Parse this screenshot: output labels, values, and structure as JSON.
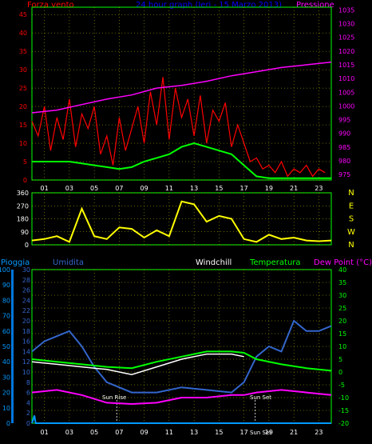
{
  "header": {
    "left_label": "Forza vento",
    "center_title": "24 hour graph (Ieri - 15 Marzo 2013)",
    "right_label": "Pressione"
  },
  "hours": [
    "01",
    "03",
    "05",
    "07",
    "09",
    "11",
    "13",
    "15",
    "17",
    "19",
    "21",
    "23"
  ],
  "colors": {
    "wind": "#ff0000",
    "avg_wind": "#00ff00",
    "pressure": "#ff00ff",
    "direction": "#ffff00",
    "pioggia": "#0099ff",
    "umidita": "#3366cc",
    "windchill": "#ffffff",
    "temperatura": "#00ff00",
    "dewpoint": "#ff00ff",
    "grid": "#c8c800"
  },
  "chart_data": [
    {
      "id": "wind",
      "type": "line",
      "left_label": "Forza vento",
      "right_label": "Pressione",
      "left_ticks": [
        "0",
        "5",
        "10",
        "15",
        "20",
        "25",
        "30",
        "35",
        "40",
        "45"
      ],
      "right_ticks": [
        "975",
        "980",
        "985",
        "990",
        "995",
        "1000",
        "1005",
        "1010",
        "1015",
        "1020",
        "1025",
        "1030",
        "1035"
      ],
      "ylim_left": [
        0,
        47
      ],
      "ylim_right": [
        973,
        1036
      ],
      "x_hour_range": [
        0,
        24
      ],
      "pressure": {
        "x": [
          0,
          2,
          4,
          6,
          8,
          10,
          12,
          14,
          16,
          18,
          20,
          22,
          24
        ],
        "y": [
          997.5,
          998.5,
          1000.5,
          1002.5,
          1004,
          1006.5,
          1007.5,
          1009,
          1011,
          1012.5,
          1014,
          1015,
          1016
        ]
      },
      "wind_gust": {
        "x": [
          0,
          0.5,
          1,
          1.5,
          2,
          2.5,
          3,
          3.5,
          4,
          4.5,
          5,
          5.5,
          6,
          6.5,
          7,
          7.5,
          8,
          8.5,
          9,
          9.5,
          10,
          10.5,
          11,
          11.5,
          12,
          12.5,
          13,
          13.5,
          14,
          14.5,
          15,
          15.5,
          16,
          16.5,
          17,
          17.5,
          18,
          18.5,
          19,
          19.5,
          20,
          20.5,
          21,
          21.5,
          22,
          22.5,
          23,
          23.5
        ],
        "y": [
          16,
          12,
          20,
          8,
          17,
          11,
          22,
          9,
          18,
          14,
          20,
          7,
          12,
          4,
          17,
          8,
          14,
          20,
          10,
          24,
          15,
          28,
          11,
          25,
          17,
          22,
          12,
          23,
          10,
          19,
          16,
          21,
          9,
          15,
          10,
          5,
          6,
          3,
          4,
          2,
          5,
          1,
          3,
          2,
          4,
          1,
          3,
          2
        ]
      },
      "wind_avg": {
        "x": [
          0,
          1,
          2,
          3,
          4,
          5,
          6,
          7,
          8,
          9,
          10,
          11,
          12,
          13,
          14,
          15,
          16,
          17,
          18,
          19,
          20,
          21,
          22,
          23,
          24
        ],
        "y": [
          5,
          5,
          5,
          5,
          4.5,
          4,
          3.5,
          3,
          3.5,
          5,
          6,
          7,
          9,
          10,
          9,
          8,
          7,
          4,
          1,
          0.5,
          0.5,
          0.5,
          0.5,
          0.5,
          0.5
        ]
      }
    },
    {
      "id": "direction",
      "type": "line",
      "left_ticks": [
        "0",
        "90",
        "180",
        "270",
        "360"
      ],
      "right_ticks": [
        "N",
        "W",
        "S",
        "E",
        "N"
      ],
      "ylim": [
        0,
        360
      ],
      "direction": {
        "x": [
          0,
          1,
          2,
          3,
          4,
          5,
          6,
          7,
          8,
          9,
          10,
          11,
          12,
          13,
          14,
          15,
          16,
          17,
          18,
          19,
          20,
          21,
          22,
          23,
          24
        ],
        "y": [
          30,
          40,
          60,
          20,
          250,
          60,
          40,
          120,
          110,
          50,
          100,
          60,
          300,
          280,
          160,
          200,
          180,
          40,
          20,
          70,
          40,
          50,
          30,
          25,
          30
        ]
      }
    },
    {
      "id": "thermo",
      "type": "line",
      "legend": [
        "Pioggia",
        "Umidita",
        "Windchill",
        "Temperatura",
        "Dew Point (°C)"
      ],
      "left_ticks_rain": [
        "0",
        "10",
        "20",
        "30",
        "40",
        "50",
        "60",
        "70",
        "80",
        "90",
        "100"
      ],
      "left_ticks_hum": [
        "0",
        "2",
        "4",
        "6",
        "8",
        "10",
        "12",
        "14",
        "16",
        "18",
        "20",
        "22",
        "24",
        "26",
        "28",
        "30"
      ],
      "right_ticks": [
        "-20",
        "-15",
        "-10",
        "-5",
        "0",
        "5",
        "10",
        "15",
        "20",
        "25",
        "30",
        "35",
        "40"
      ],
      "ylim_temp": [
        -20,
        40
      ],
      "annotations": {
        "sun_rise": "Sun Rise",
        "sun_set": "Sun Set",
        "sun_set_axis": "Sun Set"
      },
      "temperatura": {
        "x": [
          0,
          2,
          4,
          6,
          8,
          10,
          12,
          14,
          16,
          17,
          18,
          20,
          22,
          24
        ],
        "y": [
          5,
          4,
          3,
          2,
          1.5,
          4,
          6,
          8,
          8,
          7.5,
          5,
          3,
          1.5,
          0.5
        ]
      },
      "windchill": {
        "x": [
          0,
          2,
          4,
          6,
          8,
          10,
          12,
          14,
          16,
          17
        ],
        "y": [
          4,
          3,
          2,
          1,
          -1,
          2,
          5,
          7,
          7,
          6
        ]
      },
      "dewpoint": {
        "x": [
          0,
          2,
          4,
          6,
          8,
          10,
          12,
          14,
          16,
          17,
          18,
          20,
          22,
          24
        ],
        "y": [
          -8,
          -7,
          -9,
          -12,
          -12.5,
          -12,
          -10,
          -10,
          -9,
          -9,
          -8,
          -7,
          -8,
          -9
        ]
      },
      "umidita": {
        "x": [
          0,
          1,
          2,
          3,
          4,
          5,
          6,
          8,
          10,
          12,
          14,
          16,
          17,
          18,
          19,
          20,
          21,
          22,
          23,
          24
        ],
        "y": [
          14,
          16,
          17,
          18,
          15,
          11,
          8,
          6,
          6,
          7,
          6.5,
          6,
          8,
          13,
          15,
          14,
          20,
          18,
          18,
          19
        ]
      },
      "pioggia_pct": {
        "x": [
          0,
          0.2,
          0.3,
          24
        ],
        "y": [
          0,
          5,
          0,
          0
        ]
      }
    }
  ]
}
